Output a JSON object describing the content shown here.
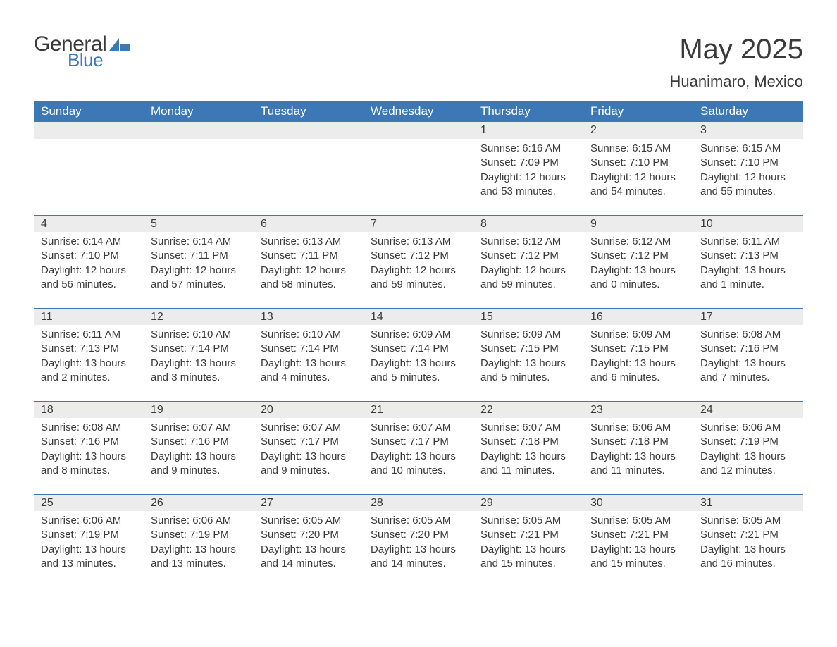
{
  "brand": {
    "general": "General",
    "blue": "Blue"
  },
  "title": "May 2025",
  "location": "Huanimaro, Mexico",
  "colors": {
    "header_bg": "#3b78b5",
    "header_text": "#ffffff",
    "daynum_bg": "#ececec",
    "border": "#3b78b5",
    "text": "#3a3a3a",
    "logo_blue": "#3b78b5"
  },
  "daysOfWeek": [
    "Sunday",
    "Monday",
    "Tuesday",
    "Wednesday",
    "Thursday",
    "Friday",
    "Saturday"
  ],
  "weeks": [
    [
      null,
      null,
      null,
      null,
      {
        "n": "1",
        "sunrise": "6:16 AM",
        "sunset": "7:09 PM",
        "daylight": "12 hours and 53 minutes."
      },
      {
        "n": "2",
        "sunrise": "6:15 AM",
        "sunset": "7:10 PM",
        "daylight": "12 hours and 54 minutes."
      },
      {
        "n": "3",
        "sunrise": "6:15 AM",
        "sunset": "7:10 PM",
        "daylight": "12 hours and 55 minutes."
      }
    ],
    [
      {
        "n": "4",
        "sunrise": "6:14 AM",
        "sunset": "7:10 PM",
        "daylight": "12 hours and 56 minutes."
      },
      {
        "n": "5",
        "sunrise": "6:14 AM",
        "sunset": "7:11 PM",
        "daylight": "12 hours and 57 minutes."
      },
      {
        "n": "6",
        "sunrise": "6:13 AM",
        "sunset": "7:11 PM",
        "daylight": "12 hours and 58 minutes."
      },
      {
        "n": "7",
        "sunrise": "6:13 AM",
        "sunset": "7:12 PM",
        "daylight": "12 hours and 59 minutes."
      },
      {
        "n": "8",
        "sunrise": "6:12 AM",
        "sunset": "7:12 PM",
        "daylight": "12 hours and 59 minutes."
      },
      {
        "n": "9",
        "sunrise": "6:12 AM",
        "sunset": "7:12 PM",
        "daylight": "13 hours and 0 minutes."
      },
      {
        "n": "10",
        "sunrise": "6:11 AM",
        "sunset": "7:13 PM",
        "daylight": "13 hours and 1 minute."
      }
    ],
    [
      {
        "n": "11",
        "sunrise": "6:11 AM",
        "sunset": "7:13 PM",
        "daylight": "13 hours and 2 minutes."
      },
      {
        "n": "12",
        "sunrise": "6:10 AM",
        "sunset": "7:14 PM",
        "daylight": "13 hours and 3 minutes."
      },
      {
        "n": "13",
        "sunrise": "6:10 AM",
        "sunset": "7:14 PM",
        "daylight": "13 hours and 4 minutes."
      },
      {
        "n": "14",
        "sunrise": "6:09 AM",
        "sunset": "7:14 PM",
        "daylight": "13 hours and 5 minutes."
      },
      {
        "n": "15",
        "sunrise": "6:09 AM",
        "sunset": "7:15 PM",
        "daylight": "13 hours and 5 minutes."
      },
      {
        "n": "16",
        "sunrise": "6:09 AM",
        "sunset": "7:15 PM",
        "daylight": "13 hours and 6 minutes."
      },
      {
        "n": "17",
        "sunrise": "6:08 AM",
        "sunset": "7:16 PM",
        "daylight": "13 hours and 7 minutes."
      }
    ],
    [
      {
        "n": "18",
        "sunrise": "6:08 AM",
        "sunset": "7:16 PM",
        "daylight": "13 hours and 8 minutes."
      },
      {
        "n": "19",
        "sunrise": "6:07 AM",
        "sunset": "7:16 PM",
        "daylight": "13 hours and 9 minutes."
      },
      {
        "n": "20",
        "sunrise": "6:07 AM",
        "sunset": "7:17 PM",
        "daylight": "13 hours and 9 minutes."
      },
      {
        "n": "21",
        "sunrise": "6:07 AM",
        "sunset": "7:17 PM",
        "daylight": "13 hours and 10 minutes."
      },
      {
        "n": "22",
        "sunrise": "6:07 AM",
        "sunset": "7:18 PM",
        "daylight": "13 hours and 11 minutes."
      },
      {
        "n": "23",
        "sunrise": "6:06 AM",
        "sunset": "7:18 PM",
        "daylight": "13 hours and 11 minutes."
      },
      {
        "n": "24",
        "sunrise": "6:06 AM",
        "sunset": "7:19 PM",
        "daylight": "13 hours and 12 minutes."
      }
    ],
    [
      {
        "n": "25",
        "sunrise": "6:06 AM",
        "sunset": "7:19 PM",
        "daylight": "13 hours and 13 minutes."
      },
      {
        "n": "26",
        "sunrise": "6:06 AM",
        "sunset": "7:19 PM",
        "daylight": "13 hours and 13 minutes."
      },
      {
        "n": "27",
        "sunrise": "6:05 AM",
        "sunset": "7:20 PM",
        "daylight": "13 hours and 14 minutes."
      },
      {
        "n": "28",
        "sunrise": "6:05 AM",
        "sunset": "7:20 PM",
        "daylight": "13 hours and 14 minutes."
      },
      {
        "n": "29",
        "sunrise": "6:05 AM",
        "sunset": "7:21 PM",
        "daylight": "13 hours and 15 minutes."
      },
      {
        "n": "30",
        "sunrise": "6:05 AM",
        "sunset": "7:21 PM",
        "daylight": "13 hours and 15 minutes."
      },
      {
        "n": "31",
        "sunrise": "6:05 AM",
        "sunset": "7:21 PM",
        "daylight": "13 hours and 16 minutes."
      }
    ]
  ],
  "labels": {
    "sunrise": "Sunrise: ",
    "sunset": "Sunset: ",
    "daylight": "Daylight: "
  }
}
